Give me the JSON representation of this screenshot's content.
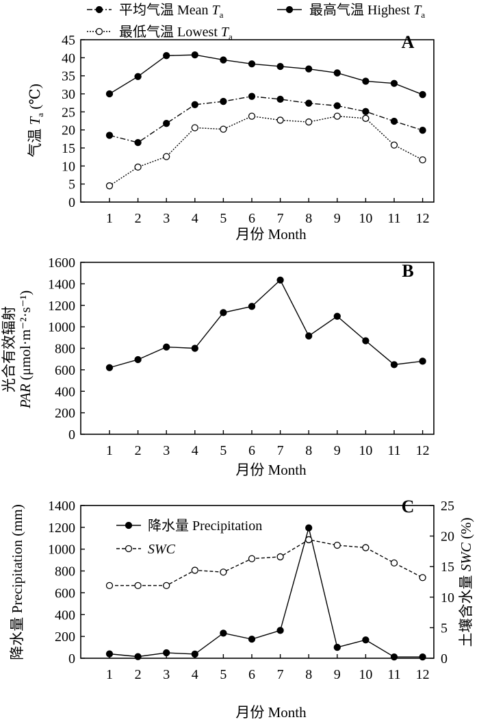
{
  "chart_data": [
    {
      "type": "line",
      "panel_label": "A",
      "x": [
        1,
        2,
        3,
        4,
        5,
        6,
        7,
        8,
        9,
        10,
        11,
        12
      ],
      "xlabel": "月份 Month",
      "ylabel": {
        "main": "气温 ",
        "var": "T",
        "sub": "a",
        "unit": " (℃)"
      },
      "ylim": [
        0,
        45
      ],
      "yticks": [
        0,
        5,
        10,
        15,
        20,
        25,
        30,
        35,
        40,
        45
      ],
      "legend_placement": "top",
      "series": [
        {
          "name": {
            "main": "平均气温 Mean ",
            "var": "T",
            "sub": "a"
          },
          "style": "dash-dot, filled markers",
          "values": [
            18.5,
            16.5,
            21.8,
            27.0,
            27.9,
            29.3,
            28.5,
            27.4,
            26.7,
            25.1,
            22.4,
            19.9
          ]
        },
        {
          "name": {
            "main": "最高气温 Highest ",
            "var": "T",
            "sub": "a"
          },
          "style": "solid, filled markers",
          "values": [
            30.0,
            34.8,
            40.6,
            40.8,
            39.4,
            38.3,
            37.6,
            36.9,
            35.8,
            33.5,
            32.9,
            29.8
          ]
        },
        {
          "name": {
            "main": "最低气温 Lowest ",
            "var": "T",
            "sub": "a"
          },
          "style": "dotted, open markers",
          "values": [
            4.5,
            9.7,
            12.6,
            20.6,
            20.2,
            23.8,
            22.7,
            22.2,
            23.8,
            23.2,
            15.8,
            11.7
          ]
        }
      ]
    },
    {
      "type": "line",
      "panel_label": "B",
      "x": [
        1,
        2,
        3,
        4,
        5,
        6,
        7,
        8,
        9,
        10,
        11,
        12
      ],
      "xlabel": "月份 Month",
      "ylabel": {
        "line1": "光合有效辐射",
        "line2_var": "PAR",
        "line2_unit": " (μmol·m⁻²·s⁻¹)"
      },
      "ylim": [
        0,
        1600
      ],
      "yticks": [
        0,
        200,
        400,
        600,
        800,
        1000,
        1200,
        1400,
        1600
      ],
      "series": [
        {
          "style": "solid, filled markers",
          "values": [
            620,
            695,
            812,
            800,
            1132,
            1190,
            1435,
            915,
            1098,
            870,
            648,
            680
          ]
        }
      ]
    },
    {
      "type": "line",
      "panel_label": "C",
      "x": [
        1,
        2,
        3,
        4,
        5,
        6,
        7,
        8,
        9,
        10,
        11,
        12
      ],
      "xlabel": "月份 Month",
      "ylabel": "降水量 Precipitation (mm)",
      "ylim": [
        0,
        1400
      ],
      "yticks": [
        0,
        200,
        400,
        600,
        800,
        1000,
        1200,
        1400
      ],
      "y2label": {
        "main": "土壤含水量 ",
        "var": "SWC",
        "unit": " (%)"
      },
      "y2lim": [
        0,
        25
      ],
      "y2ticks": [
        0,
        5,
        10,
        15,
        20,
        25
      ],
      "legend_placement": "top-left",
      "series": [
        {
          "name": "降水量 Precipitation",
          "axis": "left",
          "style": "solid, filled markers",
          "values": [
            40,
            15,
            50,
            38,
            230,
            175,
            255,
            1195,
            100,
            168,
            12,
            12
          ]
        },
        {
          "name": "SWC",
          "axis": "right",
          "style": "dashed, open markers",
          "values": [
            11.9,
            11.9,
            11.9,
            14.4,
            14.1,
            16.3,
            16.6,
            19.4,
            18.5,
            18.1,
            15.6,
            13.2
          ]
        }
      ]
    }
  ]
}
